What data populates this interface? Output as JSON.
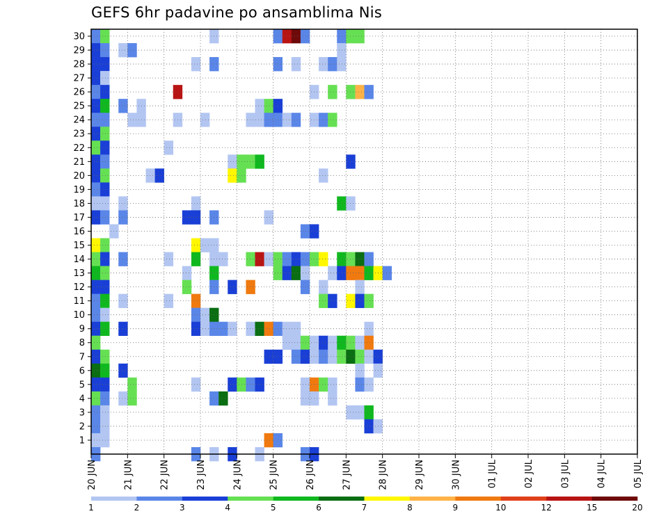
{
  "chart_data": {
    "type": "heatmap",
    "title": "GEFS 6hr padavine po ansamblima Nis",
    "ylim": [
      0,
      30
    ],
    "yticks": [
      1,
      2,
      3,
      4,
      5,
      6,
      7,
      8,
      9,
      10,
      11,
      12,
      13,
      14,
      15,
      16,
      17,
      18,
      19,
      20,
      21,
      22,
      23,
      24,
      25,
      26,
      27,
      28,
      29,
      30
    ],
    "xticks": [
      "20 JUN",
      "21 JUN",
      "22 JUN",
      "23 JUN",
      "24 JUN",
      "25 JUN",
      "26 JUN",
      "27 JUN",
      "28 JUN",
      "29 JUN",
      "30 JUN",
      "01 JUL",
      "02 JUL",
      "03 JUL",
      "04 JUL",
      "05 JUL"
    ],
    "x_steps_total": 60,
    "grid": true,
    "colorbar": {
      "labels": [
        "1",
        "2",
        "3",
        "4",
        "5",
        "6",
        "7",
        "8",
        "9",
        "10",
        "12",
        "15",
        "20"
      ],
      "colors": [
        "#b3c6f2",
        "#5a86e8",
        "#1a3fd6",
        "#66e053",
        "#10b81f",
        "#0a6e12",
        "#fff700",
        "#ffb347",
        "#f07a10",
        "#e0401a",
        "#b81414",
        "#6e0a0a"
      ]
    },
    "cells": [
      [
        30,
        1,
        2
      ],
      [
        30,
        2,
        4
      ],
      [
        30,
        14,
        1
      ],
      [
        30,
        21,
        2
      ],
      [
        30,
        22,
        11
      ],
      [
        30,
        23,
        12
      ],
      [
        30,
        24,
        2
      ],
      [
        30,
        28,
        2
      ],
      [
        30,
        29,
        4
      ],
      [
        30,
        30,
        4
      ],
      [
        29,
        1,
        3
      ],
      [
        29,
        2,
        2
      ],
      [
        29,
        4,
        1
      ],
      [
        29,
        5,
        2
      ],
      [
        29,
        28,
        1
      ],
      [
        28,
        1,
        3
      ],
      [
        28,
        2,
        3
      ],
      [
        28,
        12,
        1
      ],
      [
        28,
        14,
        2
      ],
      [
        28,
        21,
        2
      ],
      [
        28,
        23,
        1
      ],
      [
        28,
        26,
        1
      ],
      [
        28,
        27,
        2
      ],
      [
        28,
        28,
        1
      ],
      [
        27,
        1,
        3
      ],
      [
        27,
        2,
        1
      ],
      [
        26,
        1,
        2
      ],
      [
        26,
        2,
        3
      ],
      [
        26,
        10,
        11
      ],
      [
        26,
        25,
        1
      ],
      [
        26,
        27,
        4
      ],
      [
        26,
        29,
        4
      ],
      [
        26,
        30,
        8
      ],
      [
        26,
        31,
        2
      ],
      [
        25,
        1,
        3
      ],
      [
        25,
        2,
        5
      ],
      [
        25,
        4,
        2
      ],
      [
        25,
        6,
        1
      ],
      [
        25,
        19,
        1
      ],
      [
        25,
        20,
        4
      ],
      [
        25,
        21,
        3
      ],
      [
        24,
        1,
        2
      ],
      [
        24,
        2,
        2
      ],
      [
        24,
        5,
        1
      ],
      [
        24,
        6,
        1
      ],
      [
        24,
        10,
        1
      ],
      [
        24,
        13,
        1
      ],
      [
        24,
        18,
        1
      ],
      [
        24,
        19,
        1
      ],
      [
        24,
        20,
        2
      ],
      [
        24,
        21,
        2
      ],
      [
        24,
        22,
        1
      ],
      [
        24,
        23,
        2
      ],
      [
        24,
        25,
        1
      ],
      [
        24,
        26,
        2
      ],
      [
        24,
        27,
        4
      ],
      [
        23,
        1,
        3
      ],
      [
        23,
        2,
        4
      ],
      [
        22,
        1,
        4
      ],
      [
        22,
        2,
        3
      ],
      [
        22,
        9,
        1
      ],
      [
        21,
        1,
        3
      ],
      [
        21,
        2,
        2
      ],
      [
        21,
        16,
        1
      ],
      [
        21,
        17,
        4
      ],
      [
        21,
        18,
        4
      ],
      [
        21,
        19,
        5
      ],
      [
        21,
        29,
        3
      ],
      [
        20,
        1,
        3
      ],
      [
        20,
        2,
        4
      ],
      [
        20,
        7,
        1
      ],
      [
        20,
        8,
        3
      ],
      [
        20,
        16,
        7
      ],
      [
        20,
        17,
        4
      ],
      [
        20,
        26,
        1
      ],
      [
        19,
        1,
        2
      ],
      [
        19,
        2,
        3
      ],
      [
        18,
        1,
        1
      ],
      [
        18,
        2,
        1
      ],
      [
        18,
        4,
        1
      ],
      [
        18,
        12,
        1
      ],
      [
        18,
        28,
        5
      ],
      [
        18,
        29,
        1
      ],
      [
        17,
        1,
        3
      ],
      [
        17,
        2,
        2
      ],
      [
        17,
        4,
        2
      ],
      [
        17,
        11,
        3
      ],
      [
        17,
        12,
        3
      ],
      [
        17,
        14,
        2
      ],
      [
        17,
        20,
        1
      ],
      [
        16,
        3,
        1
      ],
      [
        16,
        24,
        2
      ],
      [
        16,
        25,
        3
      ],
      [
        15,
        1,
        7
      ],
      [
        15,
        2,
        4
      ],
      [
        15,
        12,
        7
      ],
      [
        15,
        13,
        1
      ],
      [
        15,
        14,
        1
      ],
      [
        14,
        1,
        4
      ],
      [
        14,
        2,
        3
      ],
      [
        14,
        4,
        2
      ],
      [
        14,
        9,
        1
      ],
      [
        14,
        12,
        5
      ],
      [
        14,
        14,
        1
      ],
      [
        14,
        15,
        1
      ],
      [
        14,
        18,
        4
      ],
      [
        14,
        19,
        11
      ],
      [
        14,
        20,
        1
      ],
      [
        14,
        21,
        4
      ],
      [
        14,
        22,
        2
      ],
      [
        14,
        23,
        3
      ],
      [
        14,
        24,
        2
      ],
      [
        14,
        25,
        4
      ],
      [
        14,
        26,
        7
      ],
      [
        14,
        28,
        5
      ],
      [
        14,
        29,
        4
      ],
      [
        14,
        30,
        6
      ],
      [
        14,
        31,
        2
      ],
      [
        13,
        1,
        5
      ],
      [
        13,
        2,
        4
      ],
      [
        13,
        11,
        1
      ],
      [
        13,
        14,
        5
      ],
      [
        13,
        21,
        4
      ],
      [
        13,
        22,
        3
      ],
      [
        13,
        23,
        6
      ],
      [
        13,
        24,
        1
      ],
      [
        13,
        27,
        1
      ],
      [
        13,
        28,
        3
      ],
      [
        13,
        29,
        9
      ],
      [
        13,
        30,
        9
      ],
      [
        13,
        31,
        5
      ],
      [
        13,
        32,
        7
      ],
      [
        13,
        33,
        2
      ],
      [
        12,
        1,
        3
      ],
      [
        12,
        2,
        3
      ],
      [
        12,
        11,
        4
      ],
      [
        12,
        14,
        2
      ],
      [
        12,
        16,
        3
      ],
      [
        12,
        18,
        9
      ],
      [
        12,
        24,
        2
      ],
      [
        12,
        26,
        1
      ],
      [
        12,
        30,
        1
      ],
      [
        11,
        1,
        2
      ],
      [
        11,
        2,
        5
      ],
      [
        11,
        4,
        1
      ],
      [
        11,
        9,
        1
      ],
      [
        11,
        12,
        9
      ],
      [
        11,
        26,
        4
      ],
      [
        11,
        27,
        3
      ],
      [
        11,
        29,
        7
      ],
      [
        11,
        30,
        3
      ],
      [
        11,
        31,
        4
      ],
      [
        10,
        1,
        2
      ],
      [
        10,
        2,
        1
      ],
      [
        10,
        12,
        2
      ],
      [
        10,
        13,
        1
      ],
      [
        10,
        14,
        6
      ],
      [
        9,
        1,
        3
      ],
      [
        9,
        2,
        5
      ],
      [
        9,
        4,
        3
      ],
      [
        9,
        12,
        3
      ],
      [
        9,
        13,
        1
      ],
      [
        9,
        14,
        2
      ],
      [
        9,
        15,
        2
      ],
      [
        9,
        16,
        1
      ],
      [
        9,
        18,
        1
      ],
      [
        9,
        19,
        6
      ],
      [
        9,
        20,
        9
      ],
      [
        9,
        21,
        2
      ],
      [
        9,
        22,
        1
      ],
      [
        9,
        23,
        1
      ],
      [
        9,
        31,
        1
      ],
      [
        8,
        1,
        4
      ],
      [
        8,
        22,
        1
      ],
      [
        8,
        23,
        1
      ],
      [
        8,
        24,
        4
      ],
      [
        8,
        25,
        1
      ],
      [
        8,
        26,
        3
      ],
      [
        8,
        27,
        1
      ],
      [
        8,
        28,
        5
      ],
      [
        8,
        29,
        4
      ],
      [
        8,
        30,
        1
      ],
      [
        8,
        31,
        9
      ],
      [
        7,
        1,
        3
      ],
      [
        7,
        2,
        4
      ],
      [
        7,
        20,
        3
      ],
      [
        7,
        21,
        3
      ],
      [
        7,
        23,
        2
      ],
      [
        7,
        24,
        3
      ],
      [
        7,
        25,
        1
      ],
      [
        7,
        26,
        2
      ],
      [
        7,
        27,
        1
      ],
      [
        7,
        28,
        4
      ],
      [
        7,
        29,
        6
      ],
      [
        7,
        30,
        4
      ],
      [
        7,
        31,
        1
      ],
      [
        7,
        32,
        3
      ],
      [
        6,
        1,
        6
      ],
      [
        6,
        2,
        5
      ],
      [
        6,
        4,
        3
      ],
      [
        6,
        30,
        1
      ],
      [
        6,
        32,
        1
      ],
      [
        5,
        1,
        3
      ],
      [
        5,
        2,
        3
      ],
      [
        5,
        5,
        4
      ],
      [
        5,
        12,
        1
      ],
      [
        5,
        16,
        3
      ],
      [
        5,
        17,
        4
      ],
      [
        5,
        18,
        2
      ],
      [
        5,
        19,
        3
      ],
      [
        5,
        24,
        1
      ],
      [
        5,
        25,
        9
      ],
      [
        5,
        26,
        4
      ],
      [
        5,
        27,
        1
      ],
      [
        5,
        30,
        2
      ],
      [
        5,
        31,
        1
      ],
      [
        4,
        1,
        4
      ],
      [
        4,
        2,
        2
      ],
      [
        4,
        4,
        1
      ],
      [
        4,
        5,
        4
      ],
      [
        4,
        14,
        2
      ],
      [
        4,
        15,
        6
      ],
      [
        4,
        24,
        1
      ],
      [
        4,
        25,
        1
      ],
      [
        4,
        27,
        1
      ],
      [
        3,
        1,
        2
      ],
      [
        3,
        2,
        1
      ],
      [
        3,
        29,
        1
      ],
      [
        3,
        30,
        1
      ],
      [
        3,
        31,
        5
      ],
      [
        2,
        1,
        2
      ],
      [
        2,
        2,
        1
      ],
      [
        2,
        31,
        3
      ],
      [
        2,
        32,
        1
      ],
      [
        1,
        1,
        1
      ],
      [
        1,
        2,
        1
      ],
      [
        1,
        20,
        9
      ],
      [
        1,
        21,
        2
      ],
      [
        0,
        1,
        2
      ],
      [
        0,
        12,
        2
      ],
      [
        0,
        14,
        1
      ],
      [
        0,
        16,
        3
      ],
      [
        0,
        19,
        1
      ],
      [
        0,
        24,
        2
      ],
      [
        0,
        25,
        3
      ]
    ]
  }
}
